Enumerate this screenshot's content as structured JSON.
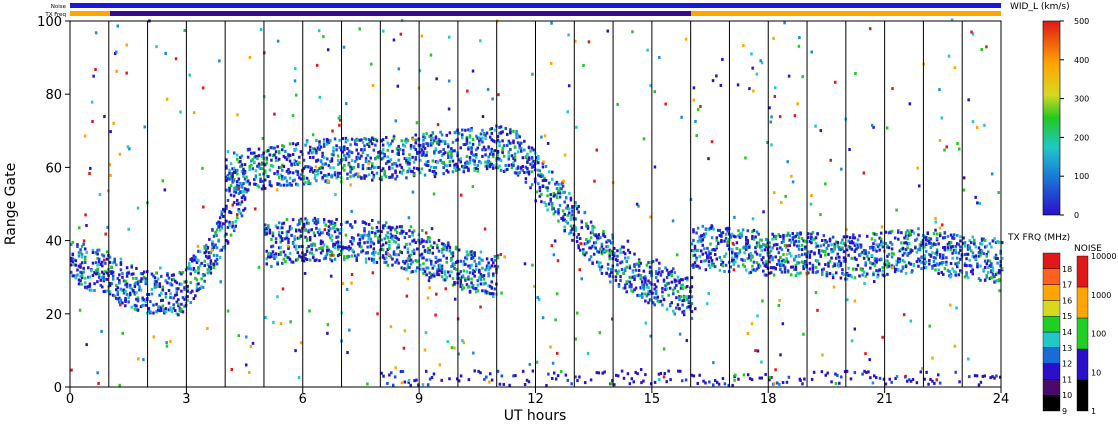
{
  "chart_data": {
    "type": "heatmap",
    "xlabel": "UT hours",
    "ylabel": "Range Gate",
    "xlim": [
      0,
      24
    ],
    "ylim": [
      0,
      100
    ],
    "x_ticks": [
      0,
      3,
      6,
      9,
      12,
      15,
      18,
      21,
      24
    ],
    "y_ticks": [
      0,
      20,
      40,
      60,
      80,
      100
    ],
    "vertical_lines_ut": [
      1,
      2,
      3,
      4,
      5,
      6,
      7,
      8,
      9,
      10,
      11,
      12,
      13,
      14,
      15,
      16,
      17,
      18,
      19,
      20,
      21,
      22,
      23
    ],
    "top_strips": {
      "noise_label": "Noise",
      "txfreq_label": "TX Freq",
      "noise_color": "#1a1ad8",
      "txfreq_segments": [
        {
          "from": 0,
          "to": 1.1,
          "color": "#ffa500"
        },
        {
          "from": 1.1,
          "to": 16,
          "color": "#3a0a8c"
        },
        {
          "from": 16,
          "to": 24,
          "color": "#ffa500"
        }
      ]
    },
    "width_colorbar": {
      "label": "WID_L (km/s)",
      "min": 0,
      "max": 500,
      "ticks": [
        0,
        100,
        200,
        300,
        400,
        500
      ]
    },
    "txfreq_colorbar": {
      "label": "TX FRQ (MHz)",
      "ticks": [
        9,
        10,
        11,
        12,
        13,
        14,
        15,
        16,
        17,
        18
      ],
      "colors": [
        "#000000",
        "#4a0a6a",
        "#2a10c8",
        "#1a6ad8",
        "#20c8c8",
        "#20d020",
        "#d8d820",
        "#ffa500",
        "#ff6020",
        "#e01818"
      ]
    },
    "noise_colorbar": {
      "label": "NOISE",
      "ticks": [
        "1",
        "10",
        "100",
        "1000",
        "10000"
      ],
      "colors": [
        "#000000",
        "#2a10c8",
        "#20d020",
        "#ffa500",
        "#e01818"
      ]
    },
    "scatter_bands": [
      {
        "name": "lower band",
        "ut": [
          0.0,
          1.0,
          2.0,
          2.8,
          3.5,
          4.0,
          4.5
        ],
        "gate": [
          34,
          30,
          25,
          25,
          34,
          44,
          54
        ]
      },
      {
        "name": "upper band",
        "ut": [
          4.0,
          6.0,
          8.0,
          9.0,
          10.0,
          11.0,
          11.6,
          12.5,
          13.5,
          14.5,
          15.3,
          16.0
        ],
        "gate": [
          58,
          61,
          62,
          63,
          64,
          65,
          63,
          51,
          38,
          30,
          27,
          24
        ]
      },
      {
        "name": "middle band",
        "ut": [
          5.0,
          6.0,
          7.0,
          8.0,
          9.0,
          10.0,
          11.0
        ],
        "gate": [
          38,
          40,
          40,
          39,
          36,
          32,
          30
        ]
      },
      {
        "name": "evening band",
        "ut": [
          16.0,
          17.0,
          18.0,
          19.0,
          20.0,
          21.0,
          22.0,
          23.0,
          24.0
        ],
        "gate": [
          38,
          37,
          36,
          36,
          35,
          36,
          37,
          35,
          34
        ]
      }
    ]
  }
}
